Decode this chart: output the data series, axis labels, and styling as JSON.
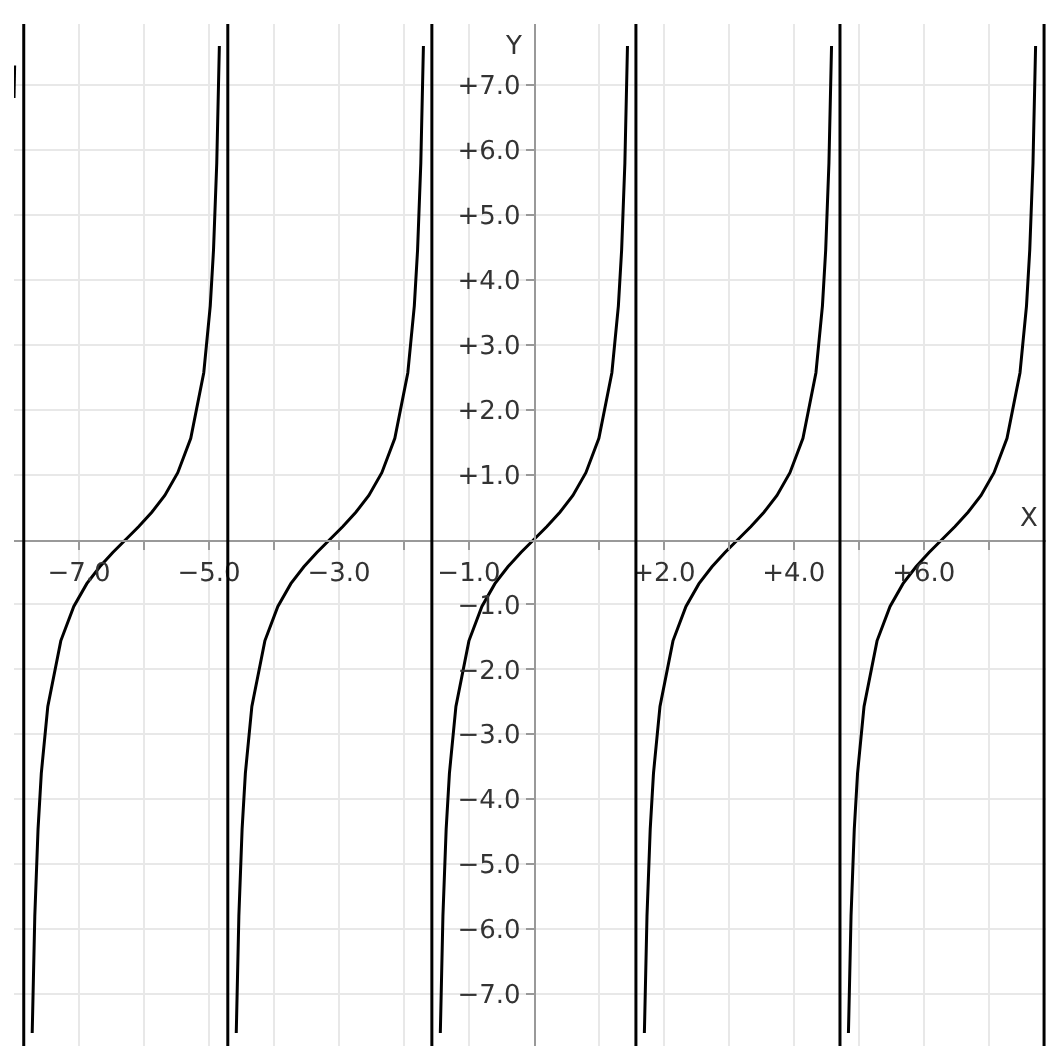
{
  "chart_data": {
    "type": "line",
    "xlabel": "X",
    "ylabel": "Y",
    "grid": true,
    "marker": "none",
    "line_style": "solid",
    "x": [
      -8.0,
      -7.99,
      -7.85,
      -7.72,
      -7.68,
      -7.63,
      -7.58,
      -7.48,
      -7.28,
      -7.08,
      -6.88,
      -6.68,
      -6.48,
      -6.28,
      -6.08,
      -5.88,
      -5.68,
      -5.48,
      -5.28,
      -5.08,
      -4.98,
      -4.93,
      -4.88,
      -4.84,
      -4.71,
      -4.58,
      -4.54,
      -4.49,
      -4.44,
      -4.34,
      -4.14,
      -3.94,
      -3.74,
      -3.54,
      -3.34,
      -3.14,
      -2.94,
      -2.74,
      -2.54,
      -2.34,
      -2.14,
      -1.94,
      -1.84,
      -1.79,
      -1.74,
      -1.7,
      -1.57,
      -1.44,
      -1.4,
      -1.35,
      -1.3,
      -1.2,
      -1.0,
      -0.8,
      -0.6,
      -0.4,
      -0.2,
      0,
      0.2,
      0.4,
      0.6,
      0.8,
      1.0,
      1.2,
      1.3,
      1.35,
      1.4,
      1.44,
      1.57,
      1.7,
      1.74,
      1.79,
      1.84,
      1.94,
      2.14,
      2.34,
      2.54,
      2.74,
      2.94,
      3.14,
      3.34,
      3.54,
      3.74,
      3.94,
      4.14,
      4.34,
      4.44,
      4.49,
      4.54,
      4.58,
      4.71,
      4.84,
      4.88,
      4.93,
      4.98,
      5.08,
      5.28,
      5.48,
      5.68,
      5.88,
      6.08,
      6.28,
      6.48,
      6.68,
      6.88,
      7.08,
      7.28,
      7.48,
      7.58,
      7.63,
      7.68,
      7.72
    ],
    "series": [
      {
        "color": "#000000",
        "values": [
          6.8,
          7.3,
          null,
          -7.6,
          -5.8,
          -4.46,
          -3.6,
          -2.57,
          -1.56,
          -1.03,
          -0.68,
          -0.42,
          -0.2,
          0,
          0.2,
          0.42,
          0.68,
          1.03,
          1.56,
          2.57,
          3.6,
          4.46,
          5.8,
          7.6,
          null,
          -7.6,
          -5.8,
          -4.46,
          -3.6,
          -2.57,
          -1.56,
          -1.03,
          -0.68,
          -0.42,
          -0.2,
          0,
          0.2,
          0.42,
          0.68,
          1.03,
          1.56,
          2.57,
          3.6,
          4.46,
          5.8,
          7.6,
          null,
          -7.6,
          -5.8,
          -4.46,
          -3.6,
          -2.57,
          -1.56,
          -1.03,
          -0.68,
          -0.42,
          -0.2,
          0,
          0.2,
          0.42,
          0.68,
          1.03,
          1.56,
          2.57,
          3.6,
          4.46,
          5.8,
          7.6,
          null,
          -7.6,
          -5.8,
          -4.46,
          -3.6,
          -2.57,
          -1.56,
          -1.03,
          -0.68,
          -0.42,
          -0.2,
          0,
          0.2,
          0.42,
          0.68,
          1.03,
          1.56,
          2.57,
          3.6,
          4.46,
          5.8,
          7.6,
          null,
          -7.6,
          -5.8,
          -4.46,
          -3.6,
          -2.57,
          -1.56,
          -1.03,
          -0.68,
          -0.42,
          -0.2,
          0,
          0.2,
          0.42,
          0.68,
          1.03,
          1.56,
          2.57,
          3.6,
          4.46,
          5.8,
          7.6
        ]
      }
    ],
    "xlim": [
      -8.0,
      7.88
    ],
    "ylim": [
      -7.8,
      7.94
    ],
    "xticks": [
      {
        "value": -7,
        "label": "−7.0"
      },
      {
        "value": -6,
        "label": null
      },
      {
        "value": -5,
        "label": "−5.0"
      },
      {
        "value": -4,
        "label": null
      },
      {
        "value": -3,
        "label": "−3.0"
      },
      {
        "value": -2,
        "label": null
      },
      {
        "value": -1,
        "label": "−1.0"
      },
      {
        "value": 1,
        "label": null
      },
      {
        "value": 2,
        "label": "+2.0"
      },
      {
        "value": 3,
        "label": null
      },
      {
        "value": 4,
        "label": "+4.0"
      },
      {
        "value": 5,
        "label": null
      },
      {
        "value": 6,
        "label": "+6.0"
      },
      {
        "value": 7,
        "label": null
      }
    ],
    "yticks": [
      {
        "value": -7,
        "label": "−7.0"
      },
      {
        "value": -6,
        "label": "−6.0"
      },
      {
        "value": -5,
        "label": "−5.0"
      },
      {
        "value": -4,
        "label": "−4.0"
      },
      {
        "value": -3,
        "label": "−3.0"
      },
      {
        "value": -2,
        "label": "−2.0"
      },
      {
        "value": -1,
        "label": "−1.0"
      },
      {
        "value": 1,
        "label": "+1.0"
      },
      {
        "value": 2,
        "label": "+2.0"
      },
      {
        "value": 3,
        "label": "+3.0"
      },
      {
        "value": 4,
        "label": "+4.0"
      },
      {
        "value": 5,
        "label": "+5.0"
      },
      {
        "value": 6,
        "label": "+6.0"
      },
      {
        "value": 7,
        "label": "+7.0"
      }
    ],
    "ref_lines": [
      {
        "axis": "x",
        "value": -7.85,
        "color": "#000000",
        "line_style": "solid"
      },
      {
        "axis": "x",
        "value": -4.71,
        "color": "#000000",
        "line_style": "solid"
      },
      {
        "axis": "x",
        "value": -1.57,
        "color": "#000000",
        "line_style": "solid"
      },
      {
        "axis": "x",
        "value": 1.57,
        "color": "#000000",
        "line_style": "solid"
      },
      {
        "axis": "x",
        "value": 4.71,
        "color": "#000000",
        "line_style": "solid"
      },
      {
        "axis": "x",
        "value": 7.85,
        "color": "#000000",
        "line_style": "solid"
      }
    ]
  }
}
